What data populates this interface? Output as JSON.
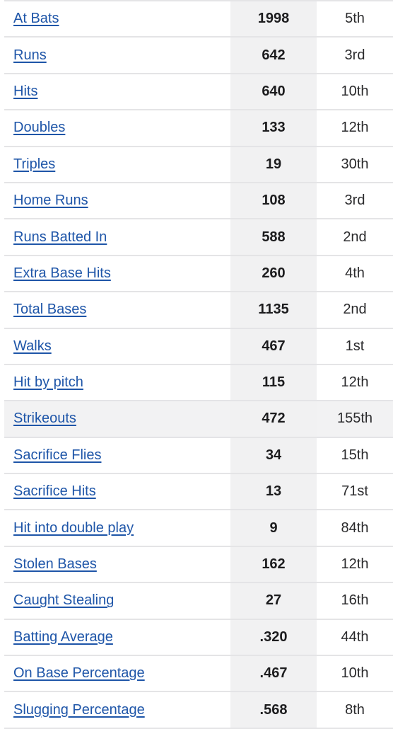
{
  "stats": [
    {
      "label": "At Bats",
      "value": "1998",
      "rank": "5th"
    },
    {
      "label": "Runs",
      "value": "642",
      "rank": "3rd"
    },
    {
      "label": "Hits",
      "value": "640",
      "rank": "10th"
    },
    {
      "label": "Doubles",
      "value": "133",
      "rank": "12th"
    },
    {
      "label": "Triples",
      "value": "19",
      "rank": "30th"
    },
    {
      "label": "Home Runs",
      "value": "108",
      "rank": "3rd"
    },
    {
      "label": "Runs Batted In",
      "value": "588",
      "rank": "2nd"
    },
    {
      "label": "Extra Base Hits",
      "value": "260",
      "rank": "4th"
    },
    {
      "label": "Total Bases",
      "value": "1135",
      "rank": "2nd"
    },
    {
      "label": "Walks",
      "value": "467",
      "rank": "1st"
    },
    {
      "label": "Hit by pitch",
      "value": "115",
      "rank": "12th"
    },
    {
      "label": "Strikeouts",
      "value": "472",
      "rank": "155th"
    },
    {
      "label": "Sacrifice Flies",
      "value": "34",
      "rank": "15th"
    },
    {
      "label": "Sacrifice Hits",
      "value": "13",
      "rank": "71st"
    },
    {
      "label": "Hit into double play",
      "value": "9",
      "rank": "84th"
    },
    {
      "label": "Stolen Bases",
      "value": "162",
      "rank": "12th"
    },
    {
      "label": "Caught Stealing",
      "value": "27",
      "rank": "16th"
    },
    {
      "label": "Batting Average",
      "value": ".320",
      "rank": "44th"
    },
    {
      "label": "On Base Percentage",
      "value": ".467",
      "rank": "10th"
    },
    {
      "label": "Slugging Percentage",
      "value": ".568",
      "rank": "8th"
    }
  ],
  "colors": {
    "link": "#1e55a8",
    "value_column_bg": "#f1f1f2",
    "highlight_row_bg": "#f2f2f3",
    "divider": "#e4e4e6"
  }
}
